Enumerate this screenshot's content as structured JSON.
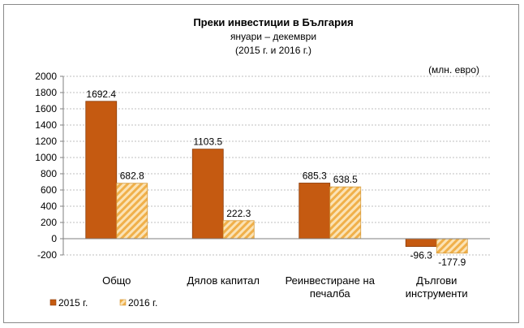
{
  "chart_data": {
    "type": "bar",
    "title": "Преки инвестиции в България",
    "subtitle1": "януари – декември",
    "subtitle2": "(2015 г. и 2016 г.)",
    "unit_label": "(млн. евро)",
    "categories": [
      [
        "Общо"
      ],
      [
        "Дялов капитал"
      ],
      [
        "Реинвестиране на",
        "печалба"
      ],
      [
        "Дългови",
        "инструменти"
      ]
    ],
    "series": [
      {
        "name": "2015 г.",
        "values": [
          1692.4,
          1103.5,
          685.3,
          -96.3
        ],
        "labels": [
          "1692.4",
          "1103.5",
          "685.3",
          "-96.3"
        ]
      },
      {
        "name": "2016 г.",
        "values": [
          682.8,
          222.3,
          638.5,
          -177.9
        ],
        "labels": [
          "682.8",
          "222.3",
          "638.5",
          "-177.9"
        ]
      }
    ],
    "ylim": [
      -200,
      2000
    ],
    "yticks": [
      "2000",
      "1800",
      "1600",
      "1400",
      "1200",
      "1000",
      "800",
      "600",
      "400",
      "200",
      "0",
      "-200"
    ],
    "grid": true,
    "legend_position": "bottom-left",
    "colors": {
      "series_2015": "#c55a11",
      "series_2016_stripe": "#f0b04a",
      "series_2016_bg": "#fbe3b6"
    }
  }
}
